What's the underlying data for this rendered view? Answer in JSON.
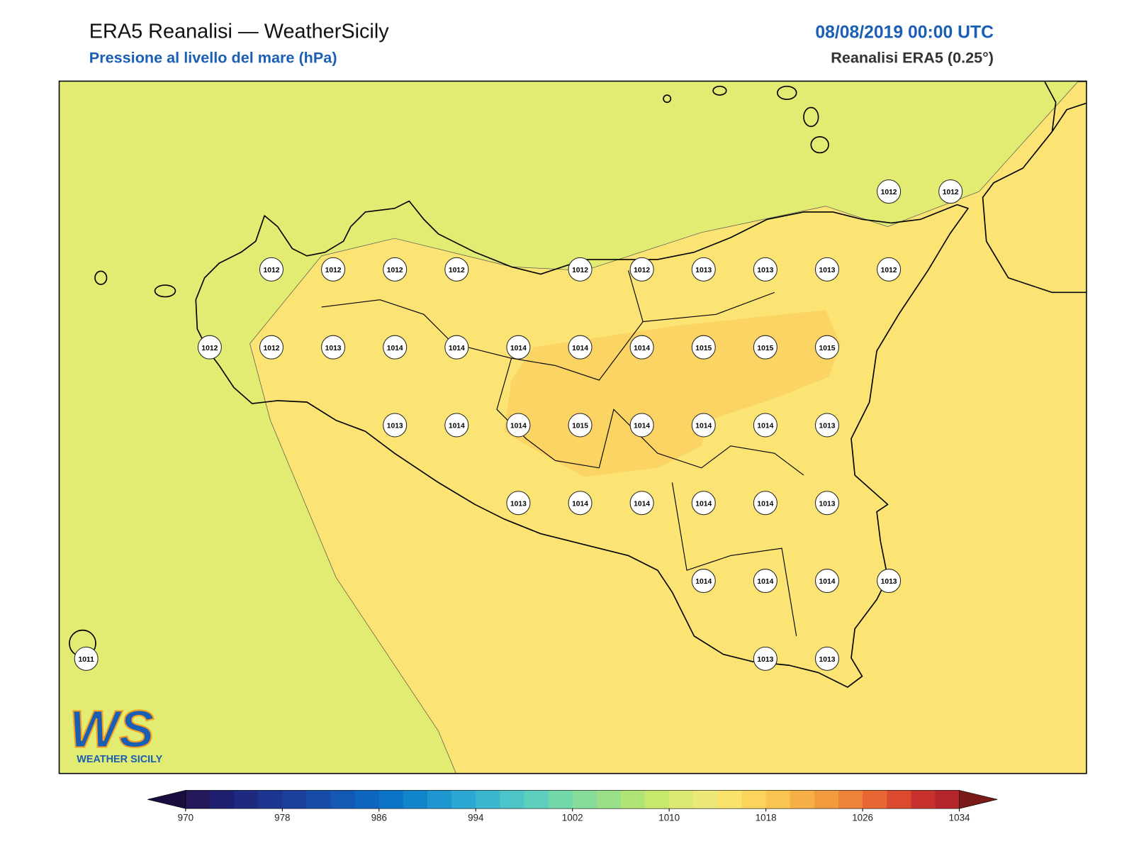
{
  "header": {
    "title": "ERA5 Reanalisi — WeatherSicily",
    "subtitle": "Pressione al livello del mare (hPa)",
    "date": "08/08/2019 00:00 UTC",
    "source": "Reanalisi ERA5 (0.25°)"
  },
  "pressure_grid": [
    [
      null,
      null,
      null,
      null,
      null,
      null,
      null,
      null,
      null,
      null,
      null,
      null,
      null,
      1012,
      1012
    ],
    [
      null,
      null,
      null,
      1012,
      1012,
      1012,
      1012,
      null,
      1012,
      1012,
      1013,
      1013,
      1013,
      1012,
      null
    ],
    [
      null,
      null,
      1012,
      1012,
      1013,
      1014,
      1014,
      1014,
      1014,
      1014,
      1015,
      1015,
      1015,
      null,
      null
    ],
    [
      null,
      null,
      null,
      null,
      null,
      1013,
      1014,
      1014,
      1015,
      1014,
      1014,
      1014,
      1013,
      null,
      null
    ],
    [
      null,
      null,
      null,
      null,
      null,
      null,
      null,
      1013,
      1014,
      1014,
      1014,
      1014,
      1013,
      null,
      null
    ],
    [
      null,
      null,
      null,
      null,
      null,
      null,
      null,
      null,
      null,
      null,
      1014,
      1014,
      1014,
      1013,
      null
    ],
    [
      1011,
      null,
      null,
      null,
      null,
      null,
      null,
      null,
      null,
      null,
      null,
      1013,
      1013,
      null,
      null
    ]
  ],
  "colorbar": {
    "ticks": [
      970,
      978,
      986,
      994,
      1002,
      1010,
      1018,
      1026,
      1034
    ],
    "colors": [
      "#24175a",
      "#1e1f6e",
      "#1d2a80",
      "#1b3590",
      "#1a409c",
      "#164ca8",
      "#1358b4",
      "#0f66c0",
      "#0c74c8",
      "#1284cc",
      "#1e96d0",
      "#2ba8d2",
      "#3ab8d0",
      "#4cc4c8",
      "#5ecfbc",
      "#72d8aa",
      "#86dc98",
      "#9ae088",
      "#b0e474",
      "#c8e86c",
      "#dcea72",
      "#ece97a",
      "#fbe26a",
      "#fcd45c",
      "#f9c450",
      "#f6b045",
      "#f29a3e",
      "#ee8238",
      "#e86632",
      "#dc4a2e",
      "#c8322c",
      "#b4262a"
    ],
    "under_color": "#1a0d40",
    "over_color": "#7a1a1a"
  },
  "logo": {
    "mark": "WS",
    "text": "WEATHER SICILY"
  }
}
